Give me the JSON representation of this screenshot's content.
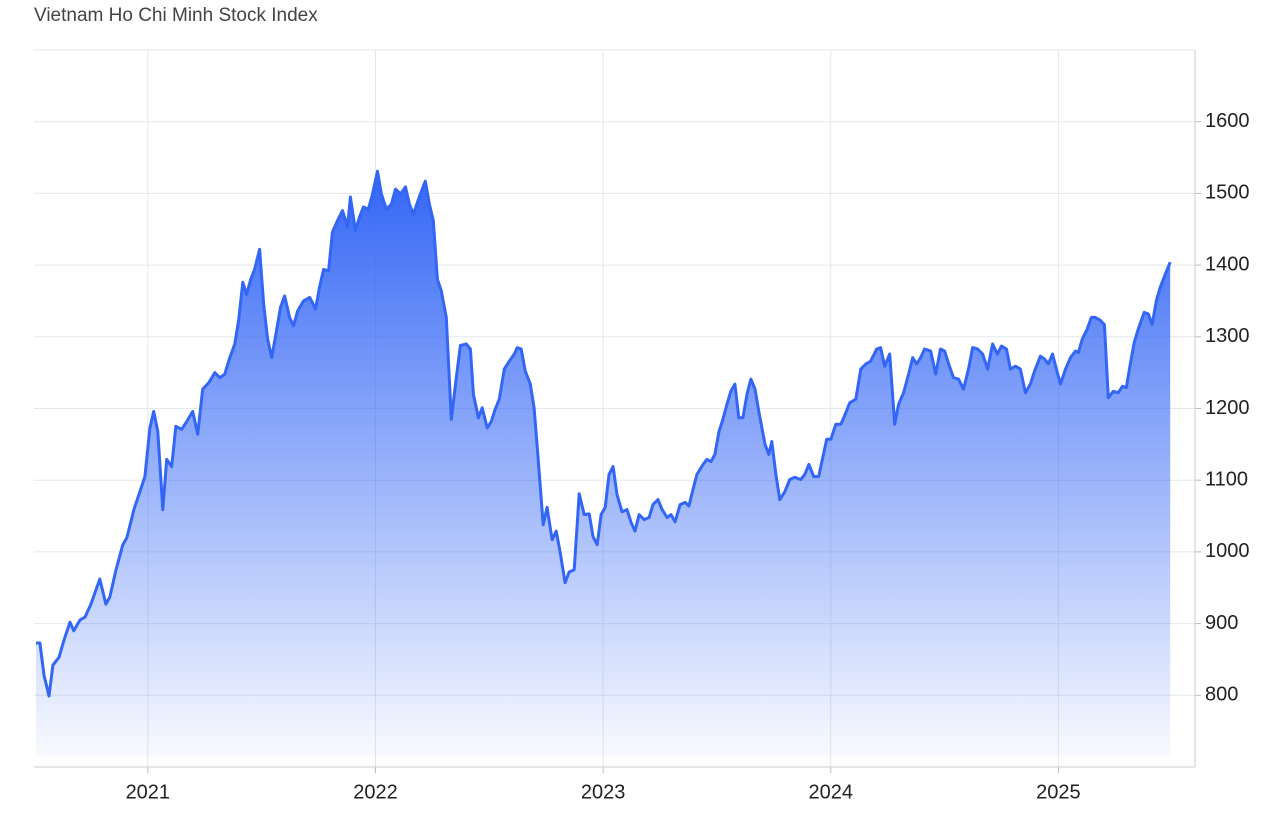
{
  "chart_data": {
    "type": "area",
    "title": "Vietnam Ho Chi Minh Stock Index",
    "x": [
      2020.509,
      2020.526,
      2020.544,
      2020.566,
      2020.583,
      2020.61,
      2020.632,
      2020.658,
      2020.675,
      2020.702,
      2020.724,
      2020.75,
      2020.789,
      2020.816,
      2020.833,
      2020.86,
      2020.89,
      2020.908,
      2020.939,
      2020.965,
      2020.987,
      2021.009,
      2021.026,
      2021.044,
      2021.066,
      2021.083,
      2021.105,
      2021.123,
      2021.149,
      2021.171,
      2021.197,
      2021.219,
      2021.241,
      2021.268,
      2021.294,
      2021.316,
      2021.338,
      2021.36,
      2021.382,
      2021.399,
      2021.417,
      2021.434,
      2021.452,
      2021.469,
      2021.491,
      2021.509,
      2021.526,
      2021.544,
      2021.566,
      2021.583,
      2021.601,
      2021.623,
      2021.64,
      2021.658,
      2021.684,
      2021.711,
      2021.737,
      2021.754,
      2021.772,
      2021.794,
      2021.811,
      2021.833,
      2021.855,
      2021.877,
      2021.89,
      2021.912,
      2021.93,
      2021.947,
      2021.969,
      2021.987,
      2022.009,
      2022.026,
      2022.048,
      2022.07,
      2022.088,
      2022.11,
      2022.132,
      2022.149,
      2022.167,
      2022.189,
      2022.219,
      2022.237,
      2022.254,
      2022.272,
      2022.289,
      2022.311,
      2022.333,
      2022.355,
      2022.373,
      2022.399,
      2022.417,
      2022.43,
      2022.452,
      2022.469,
      2022.491,
      2022.509,
      2022.526,
      2022.544,
      2022.566,
      2022.588,
      2022.61,
      2022.623,
      2022.64,
      2022.658,
      2022.68,
      2022.697,
      2022.715,
      2022.737,
      2022.754,
      2022.776,
      2022.794,
      2022.811,
      2022.833,
      2022.851,
      2022.873,
      2022.895,
      2022.917,
      2022.939,
      2022.956,
      2022.974,
      2022.991,
      2023.009,
      2023.026,
      2023.044,
      2023.061,
      2023.083,
      2023.105,
      2023.123,
      2023.14,
      2023.158,
      2023.18,
      2023.202,
      2023.219,
      2023.241,
      2023.259,
      2023.281,
      2023.298,
      2023.316,
      2023.338,
      2023.36,
      2023.377,
      2023.395,
      2023.412,
      2023.439,
      2023.456,
      2023.474,
      2023.491,
      2023.509,
      2023.526,
      2023.544,
      2023.561,
      2023.579,
      2023.596,
      2023.614,
      2023.632,
      2023.649,
      2023.667,
      2023.684,
      2023.711,
      2023.728,
      2023.741,
      2023.759,
      2023.776,
      2023.798,
      2023.82,
      2023.842,
      2023.868,
      2023.886,
      2023.904,
      2023.925,
      2023.947,
      2023.965,
      2023.982,
      2024.0,
      2024.022,
      2024.044,
      2024.066,
      2024.083,
      2024.11,
      2024.132,
      2024.154,
      2024.175,
      2024.202,
      2024.219,
      2024.237,
      2024.259,
      2024.281,
      2024.298,
      2024.32,
      2024.342,
      2024.36,
      2024.377,
      2024.395,
      2024.412,
      2024.439,
      2024.461,
      2024.482,
      2024.5,
      2024.518,
      2024.539,
      2024.561,
      2024.583,
      2024.605,
      2024.623,
      2024.645,
      2024.667,
      2024.689,
      2024.711,
      2024.732,
      2024.75,
      2024.772,
      2024.789,
      2024.811,
      2024.833,
      2024.855,
      2024.877,
      2024.895,
      2024.921,
      2024.939,
      2024.956,
      2024.974,
      2024.991,
      2025.009,
      2025.031,
      2025.053,
      2025.075,
      2025.088,
      2025.105,
      2025.127,
      2025.145,
      2025.162,
      2025.184,
      2025.202,
      2025.219,
      2025.241,
      2025.263,
      2025.281,
      2025.298,
      2025.316,
      2025.333,
      2025.351,
      2025.377,
      2025.395,
      2025.412,
      2025.43,
      2025.447,
      2025.469,
      2025.491
    ],
    "values": [
      873,
      873,
      828,
      799,
      842,
      853,
      877,
      902,
      890,
      905,
      909,
      927,
      962,
      927,
      937,
      975,
      1010,
      1020,
      1059,
      1084,
      1105,
      1173,
      1196,
      1168,
      1059,
      1129,
      1119,
      1175,
      1171,
      1182,
      1196,
      1164,
      1227,
      1236,
      1250,
      1243,
      1248,
      1271,
      1290,
      1324,
      1376,
      1359,
      1380,
      1394,
      1422,
      1345,
      1297,
      1271,
      1310,
      1341,
      1357,
      1327,
      1315,
      1336,
      1350,
      1355,
      1339,
      1369,
      1394,
      1392,
      1446,
      1462,
      1476,
      1453,
      1495,
      1448,
      1467,
      1481,
      1478,
      1499,
      1531,
      1499,
      1478,
      1485,
      1506,
      1499,
      1509,
      1485,
      1471,
      1492,
      1517,
      1485,
      1462,
      1380,
      1364,
      1327,
      1185,
      1243,
      1288,
      1290,
      1283,
      1220,
      1187,
      1201,
      1173,
      1182,
      1199,
      1213,
      1255,
      1266,
      1276,
      1285,
      1283,
      1252,
      1234,
      1201,
      1129,
      1038,
      1062,
      1017,
      1029,
      1000,
      957,
      972,
      975,
      1081,
      1052,
      1053,
      1021,
      1010,
      1052,
      1062,
      1108,
      1119,
      1080,
      1056,
      1059,
      1041,
      1029,
      1052,
      1045,
      1048,
      1066,
      1073,
      1059,
      1048,
      1052,
      1042,
      1066,
      1069,
      1064,
      1087,
      1108,
      1122,
      1129,
      1126,
      1136,
      1168,
      1185,
      1206,
      1224,
      1234,
      1187,
      1187,
      1220,
      1241,
      1227,
      1196,
      1150,
      1136,
      1154,
      1108,
      1073,
      1084,
      1101,
      1104,
      1101,
      1108,
      1122,
      1105,
      1105,
      1132,
      1157,
      1157,
      1178,
      1178,
      1194,
      1208,
      1213,
      1255,
      1262,
      1266,
      1283,
      1285,
      1259,
      1276,
      1178,
      1206,
      1222,
      1248,
      1271,
      1262,
      1271,
      1283,
      1280,
      1248,
      1283,
      1280,
      1262,
      1243,
      1241,
      1227,
      1255,
      1285,
      1283,
      1276,
      1255,
      1290,
      1276,
      1287,
      1283,
      1255,
      1259,
      1255,
      1222,
      1234,
      1252,
      1273,
      1269,
      1262,
      1276,
      1255,
      1234,
      1255,
      1271,
      1280,
      1278,
      1297,
      1311,
      1327,
      1327,
      1323,
      1317,
      1215,
      1224,
      1222,
      1231,
      1229,
      1262,
      1292,
      1311,
      1334,
      1332,
      1317,
      1350,
      1369,
      1387,
      1404
    ],
    "color": "#3366f5",
    "xlim": [
      2020.5,
      2025.6
    ],
    "xticks": [
      2021,
      2022,
      2023,
      2024,
      2025
    ],
    "ylim": [
      700,
      1700
    ],
    "yticks": [
      800,
      900,
      1000,
      1100,
      1200,
      1300,
      1400,
      1500,
      1600
    ],
    "grid": true
  }
}
